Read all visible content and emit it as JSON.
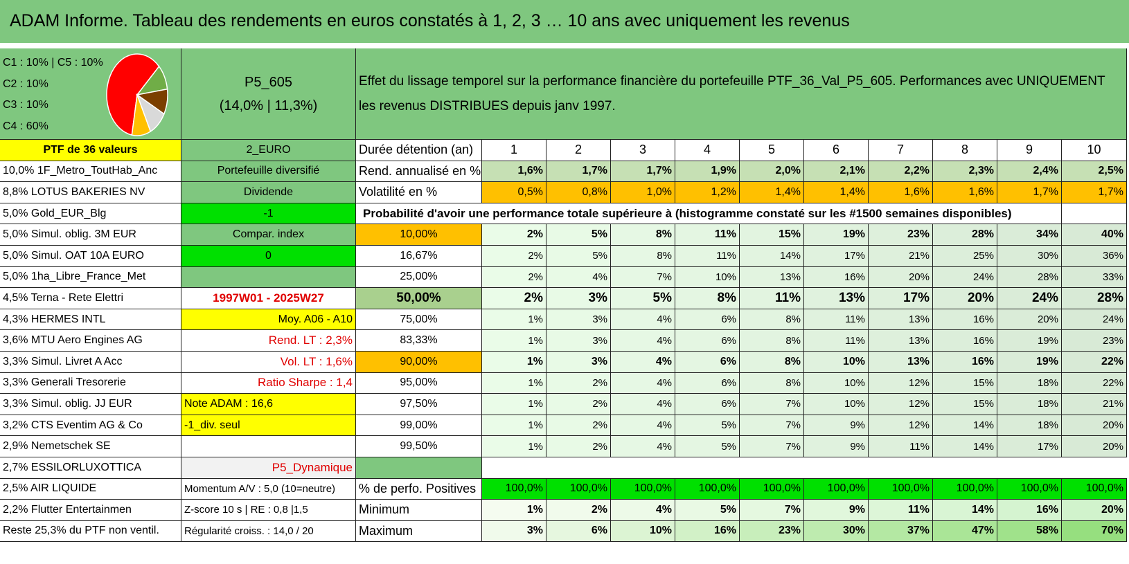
{
  "title": "ADAM Informe. Tableau des rendements en euros constatés à 1, 2, 3 … 10 ans avec uniquement les revenus",
  "weights": [
    "C1 : 10% | C5 : 10%",
    "C2 : 10%",
    "C3 : 10%",
    "C4 : 60%"
  ],
  "pie": [
    {
      "label": "C4",
      "value": 60,
      "color": "#ff0000"
    },
    {
      "label": "C5",
      "value": 10,
      "color": "#70ad47"
    },
    {
      "label": "C3",
      "value": 10,
      "color": "#7b3f00"
    },
    {
      "label": "C2",
      "value": 10,
      "color": "#d9d9d9"
    },
    {
      "label": "C1",
      "value": 10,
      "color": "#ffc000"
    }
  ],
  "portfolio": {
    "code": "P5_605",
    "stats": "(14,0% | 11,3%)"
  },
  "description": "Effet du lissage temporel sur la performance financière du portefeuille PTF_36_Val_P5_605. Performances avec UNIQUEMENT les revenus DISTRIBUES depuis janv 1997.",
  "ptf_label": "PTF de 36 valeurs",
  "currency": "2_EURO",
  "duration_label": "Durée détention (an)",
  "years": [
    "1",
    "2",
    "3",
    "4",
    "5",
    "6",
    "7",
    "8",
    "9",
    "10"
  ],
  "holdings": [
    "10,0% 1F_Metro_ToutHab_Anc",
    "8,8% LOTUS BAKERIES NV",
    "5,0% Gold_EUR_Blg",
    "5,0% Simul. oblig. 3M EUR",
    "5,0% Simul. OAT 10A EURO",
    "5,0% 1ha_Libre_France_Met",
    "4,5% Terna - Rete Elettri",
    "4,3% HERMES INTL",
    "3,6% MTU Aero Engines AG",
    "3,3% Simul. Livret A Acc",
    "3,3% Generali Tresorerie",
    "3,3% Simul. oblig. JJ EUR",
    "3,2% CTS Eventim AG & Co",
    "2,9% Nemetschek SE",
    "2,7% ESSILORLUXOTTICA",
    "2,5% AIR LIQUIDE",
    "2,2% Flutter Entertainmen",
    "Reste 25,3% du PTF non ventil."
  ],
  "info": [
    "Portefeuille diversifié",
    "Dividende",
    "-1",
    "Compar. index",
    "0",
    "",
    "1997W01 - 2025W27",
    "Moy. A06 - A10",
    "Rend. LT : 2,3%",
    "Vol. LT : 1,6%",
    "Ratio Sharpe : 1,4",
    "Note ADAM : 16,6",
    "-1_div. seul",
    "",
    "P5_Dynamique",
    "Momentum A/V : 5,0 (10=neutre)",
    "Z-score 10 s | RE : 0,8 |1,5",
    "Régularité croiss. : 14,0 / 20"
  ],
  "rend": {
    "label": "Rend. annualisé en %",
    "values": [
      "1,6%",
      "1,7%",
      "1,7%",
      "1,9%",
      "2,0%",
      "2,1%",
      "2,2%",
      "2,3%",
      "2,4%",
      "2,5%"
    ]
  },
  "vol": {
    "label": "Volatilité en %",
    "values": [
      "0,5%",
      "0,8%",
      "1,0%",
      "1,2%",
      "1,4%",
      "1,4%",
      "1,6%",
      "1,6%",
      "1,7%",
      "1,7%"
    ]
  },
  "prob_header": "Probabilité d'avoir une performance totale supérieure à (histogramme constaté sur les #1500 semaines disponibles)",
  "prob": [
    {
      "p": "10,00%",
      "v": [
        "2%",
        "5%",
        "8%",
        "11%",
        "15%",
        "19%",
        "23%",
        "28%",
        "34%",
        "40%"
      ]
    },
    {
      "p": "16,67%",
      "v": [
        "2%",
        "5%",
        "8%",
        "11%",
        "14%",
        "17%",
        "21%",
        "25%",
        "30%",
        "36%"
      ]
    },
    {
      "p": "25,00%",
      "v": [
        "2%",
        "4%",
        "7%",
        "10%",
        "13%",
        "16%",
        "20%",
        "24%",
        "28%",
        "33%"
      ]
    },
    {
      "p": "50,00%",
      "v": [
        "2%",
        "3%",
        "5%",
        "8%",
        "11%",
        "13%",
        "17%",
        "20%",
        "24%",
        "28%"
      ]
    },
    {
      "p": "75,00%",
      "v": [
        "1%",
        "3%",
        "4%",
        "6%",
        "8%",
        "11%",
        "13%",
        "16%",
        "20%",
        "24%"
      ]
    },
    {
      "p": "83,33%",
      "v": [
        "1%",
        "3%",
        "4%",
        "6%",
        "8%",
        "11%",
        "13%",
        "16%",
        "19%",
        "23%"
      ]
    },
    {
      "p": "90,00%",
      "v": [
        "1%",
        "3%",
        "4%",
        "6%",
        "8%",
        "10%",
        "13%",
        "16%",
        "19%",
        "22%"
      ]
    },
    {
      "p": "95,00%",
      "v": [
        "1%",
        "2%",
        "4%",
        "6%",
        "8%",
        "10%",
        "12%",
        "15%",
        "18%",
        "22%"
      ]
    },
    {
      "p": "97,50%",
      "v": [
        "1%",
        "2%",
        "4%",
        "6%",
        "7%",
        "10%",
        "12%",
        "15%",
        "18%",
        "21%"
      ]
    },
    {
      "p": "99,00%",
      "v": [
        "1%",
        "2%",
        "4%",
        "5%",
        "7%",
        "9%",
        "12%",
        "14%",
        "18%",
        "20%"
      ]
    },
    {
      "p": "99,50%",
      "v": [
        "1%",
        "2%",
        "4%",
        "5%",
        "7%",
        "9%",
        "11%",
        "14%",
        "17%",
        "20%"
      ]
    }
  ],
  "positives": {
    "label": "% de perfo. Positives",
    "values": [
      "100,0%",
      "100,0%",
      "100,0%",
      "100,0%",
      "100,0%",
      "100,0%",
      "100,0%",
      "100,0%",
      "100,0%",
      "100,0%"
    ]
  },
  "minimum": {
    "label": "Minimum",
    "values": [
      "1%",
      "2%",
      "4%",
      "5%",
      "7%",
      "9%",
      "11%",
      "14%",
      "16%",
      "20%"
    ]
  },
  "maximum": {
    "label": "Maximum",
    "values": [
      "3%",
      "6%",
      "10%",
      "16%",
      "23%",
      "30%",
      "37%",
      "47%",
      "58%",
      "70%"
    ]
  }
}
